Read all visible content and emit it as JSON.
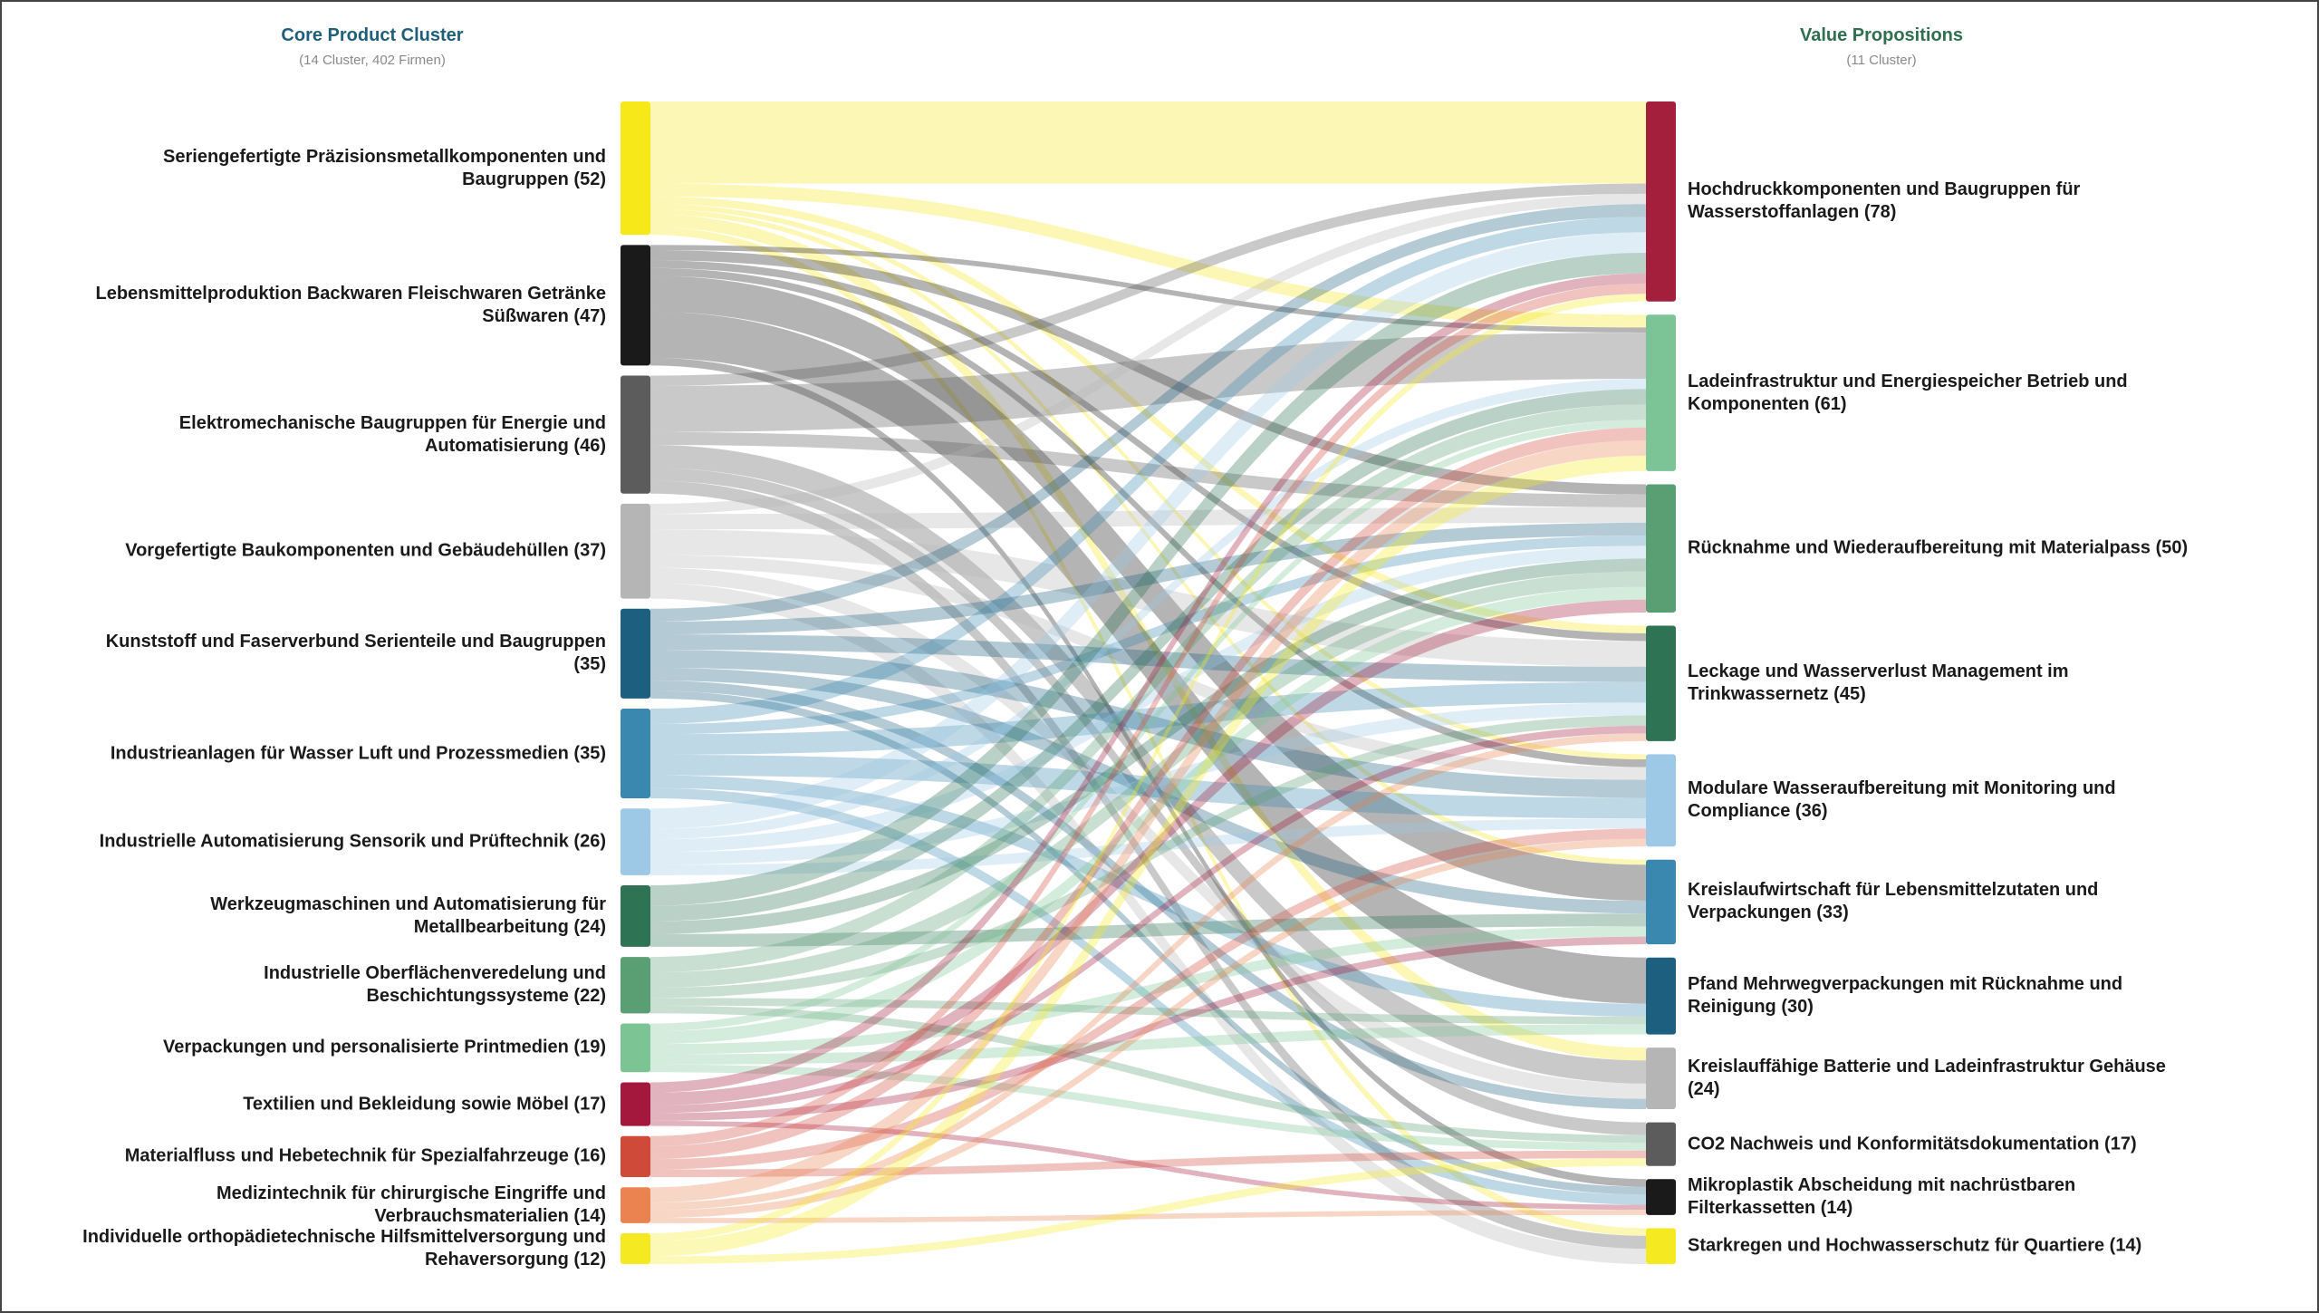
{
  "chart_data": {
    "type": "sankey",
    "left_header": {
      "title": "Core Product Cluster",
      "subtitle": "(14 Cluster, 402 Firmen)"
    },
    "right_header": {
      "title": "Value Propositions",
      "subtitle": "(11 Cluster)"
    },
    "sources": [
      {
        "label": "Seriengefertigte Präzisionsmetallkomponenten und Baugruppen (52)",
        "value": 52,
        "color": "#f7e81a"
      },
      {
        "label": "Lebensmittelproduktion Backwaren Fleischwaren Getränke Süßwaren (47)",
        "value": 47,
        "color": "#1a1a1a"
      },
      {
        "label": "Elektromechanische Baugruppen für Energie und Automatisierung (46)",
        "value": 46,
        "color": "#5c5c5c"
      },
      {
        "label": "Vorgefertigte Baukomponenten und Gebäudehüllen (37)",
        "value": 37,
        "color": "#b5b5b5"
      },
      {
        "label": "Kunststoff und Faserverbund Serienteile und Baugruppen (35)",
        "value": 35,
        "color": "#1c5f7e"
      },
      {
        "label": "Industrieanlagen für Wasser Luft und Prozessmedien (35)",
        "value": 35,
        "color": "#3a88b0"
      },
      {
        "label": "Industrielle Automatisierung Sensorik und Prüftechnik (26)",
        "value": 26,
        "color": "#9dc8e6"
      },
      {
        "label": "Werkzeugmaschinen und Automatisierung für Metallbearbeitung (24)",
        "value": 24,
        "color": "#2f7355"
      },
      {
        "label": "Industrielle Oberflächenveredelung und Beschichtungssysteme (22)",
        "value": 22,
        "color": "#5a9e74"
      },
      {
        "label": "Verpackungen und personalisierte Printmedien (19)",
        "value": 19,
        "color": "#7dc495"
      },
      {
        "label": "Textilien und Bekleidung sowie Möbel (17)",
        "value": 17,
        "color": "#a3183c"
      },
      {
        "label": "Materialfluss und Hebetechnik für Spezialfahrzeuge (16)",
        "value": 16,
        "color": "#d04a3a"
      },
      {
        "label": "Medizintechnik für chirurgische Eingriffe und Verbrauchsmaterialien (14)",
        "value": 14,
        "color": "#ea8350"
      },
      {
        "label": "Individuelle orthopädietechnische Hilfsmittelversorgung und Rehaversorgung (12)",
        "value": 12,
        "color": "#f5e922"
      }
    ],
    "targets": [
      {
        "label": "Hochdruckkomponenten und Baugruppen für Wasserstoffanlagen (78)",
        "value": 78,
        "color": "#a31f3c"
      },
      {
        "label": "Ladeinfrastruktur und Energiespeicher Betrieb und Komponenten (61)",
        "value": 61,
        "color": "#7cc495"
      },
      {
        "label": "Rücknahme und Wiederaufbereitung mit Materialpass (50)",
        "value": 50,
        "color": "#5a9e74"
      },
      {
        "label": "Leckage und Wasserverlust Management im Trinkwassernetz (45)",
        "value": 45,
        "color": "#2f7355"
      },
      {
        "label": "Modulare Wasseraufbereitung mit Monitoring und Compliance (36)",
        "value": 36,
        "color": "#9dc8e6"
      },
      {
        "label": "Kreislaufwirtschaft für Lebensmittelzutaten und Verpackungen (33)",
        "value": 33,
        "color": "#3a88b0"
      },
      {
        "label": "Pfand Mehrwegverpackungen mit Rücknahme und Reinigung (30)",
        "value": 30,
        "color": "#1c5f7e"
      },
      {
        "label": "Kreislauffähige Batterie und Ladeinfrastruktur Gehäuse (24)",
        "value": 24,
        "color": "#b5b5b5"
      },
      {
        "label": "CO2 Nachweis und Konformitätsdokumentation (17)",
        "value": 17,
        "color": "#5c5c5c"
      },
      {
        "label": "Mikroplastik Abscheidung mit nachrüstbaren Filterkassetten (14)",
        "value": 14,
        "color": "#1a1a1a"
      },
      {
        "label": "Starkregen und Hochwasserschutz für Quartiere (14)",
        "value": 14,
        "color": "#f5e922"
      }
    ],
    "links": [
      {
        "source": 0,
        "target": 0,
        "value": 32
      },
      {
        "source": 0,
        "target": 1,
        "value": 5
      },
      {
        "source": 0,
        "target": 3,
        "value": 3
      },
      {
        "source": 0,
        "target": 4,
        "value": 2
      },
      {
        "source": 0,
        "target": 5,
        "value": 2
      },
      {
        "source": 0,
        "target": 7,
        "value": 5
      },
      {
        "source": 0,
        "target": 10,
        "value": 3
      },
      {
        "source": 1,
        "target": 1,
        "value": 2
      },
      {
        "source": 1,
        "target": 2,
        "value": 4
      },
      {
        "source": 1,
        "target": 3,
        "value": 3
      },
      {
        "source": 1,
        "target": 4,
        "value": 3
      },
      {
        "source": 1,
        "target": 5,
        "value": 14
      },
      {
        "source": 1,
        "target": 6,
        "value": 18
      },
      {
        "source": 1,
        "target": 9,
        "value": 3
      },
      {
        "source": 2,
        "target": 0,
        "value": 4
      },
      {
        "source": 2,
        "target": 1,
        "value": 18
      },
      {
        "source": 2,
        "target": 2,
        "value": 5
      },
      {
        "source": 2,
        "target": 7,
        "value": 9
      },
      {
        "source": 2,
        "target": 8,
        "value": 5
      },
      {
        "source": 2,
        "target": 10,
        "value": 5
      },
      {
        "source": 3,
        "target": 0,
        "value": 4
      },
      {
        "source": 3,
        "target": 2,
        "value": 6
      },
      {
        "source": 3,
        "target": 3,
        "value": 10
      },
      {
        "source": 3,
        "target": 4,
        "value": 5
      },
      {
        "source": 3,
        "target": 7,
        "value": 6
      },
      {
        "source": 3,
        "target": 10,
        "value": 6
      },
      {
        "source": 4,
        "target": 0,
        "value": 5
      },
      {
        "source": 4,
        "target": 2,
        "value": 5
      },
      {
        "source": 4,
        "target": 3,
        "value": 6
      },
      {
        "source": 4,
        "target": 4,
        "value": 7
      },
      {
        "source": 4,
        "target": 5,
        "value": 5
      },
      {
        "source": 4,
        "target": 7,
        "value": 4
      },
      {
        "source": 4,
        "target": 9,
        "value": 3
      },
      {
        "source": 5,
        "target": 0,
        "value": 6
      },
      {
        "source": 5,
        "target": 2,
        "value": 4
      },
      {
        "source": 5,
        "target": 3,
        "value": 8
      },
      {
        "source": 5,
        "target": 4,
        "value": 8
      },
      {
        "source": 5,
        "target": 6,
        "value": 5
      },
      {
        "source": 5,
        "target": 9,
        "value": 4
      },
      {
        "source": 6,
        "target": 0,
        "value": 8
      },
      {
        "source": 6,
        "target": 1,
        "value": 4
      },
      {
        "source": 6,
        "target": 2,
        "value": 5
      },
      {
        "source": 6,
        "target": 3,
        "value": 5
      },
      {
        "source": 6,
        "target": 4,
        "value": 4
      },
      {
        "source": 7,
        "target": 0,
        "value": 8
      },
      {
        "source": 7,
        "target": 1,
        "value": 6
      },
      {
        "source": 7,
        "target": 2,
        "value": 5
      },
      {
        "source": 7,
        "target": 5,
        "value": 5
      },
      {
        "source": 8,
        "target": 1,
        "value": 6
      },
      {
        "source": 8,
        "target": 2,
        "value": 6
      },
      {
        "source": 8,
        "target": 3,
        "value": 4
      },
      {
        "source": 8,
        "target": 6,
        "value": 3
      },
      {
        "source": 8,
        "target": 8,
        "value": 3
      },
      {
        "source": 9,
        "target": 1,
        "value": 3
      },
      {
        "source": 9,
        "target": 2,
        "value": 5
      },
      {
        "source": 9,
        "target": 5,
        "value": 4
      },
      {
        "source": 9,
        "target": 6,
        "value": 4
      },
      {
        "source": 9,
        "target": 8,
        "value": 3
      },
      {
        "source": 10,
        "target": 0,
        "value": 4
      },
      {
        "source": 10,
        "target": 2,
        "value": 5
      },
      {
        "source": 10,
        "target": 3,
        "value": 3
      },
      {
        "source": 10,
        "target": 5,
        "value": 3
      },
      {
        "source": 10,
        "target": 9,
        "value": 2
      },
      {
        "source": 11,
        "target": 0,
        "value": 4
      },
      {
        "source": 11,
        "target": 1,
        "value": 5
      },
      {
        "source": 11,
        "target": 4,
        "value": 4
      },
      {
        "source": 11,
        "target": 8,
        "value": 3
      },
      {
        "source": 12,
        "target": 1,
        "value": 6
      },
      {
        "source": 12,
        "target": 3,
        "value": 3
      },
      {
        "source": 12,
        "target": 4,
        "value": 3
      },
      {
        "source": 12,
        "target": 9,
        "value": 2
      },
      {
        "source": 13,
        "target": 0,
        "value": 3
      },
      {
        "source": 13,
        "target": 1,
        "value": 6
      },
      {
        "source": 13,
        "target": 8,
        "value": 3
      }
    ]
  }
}
